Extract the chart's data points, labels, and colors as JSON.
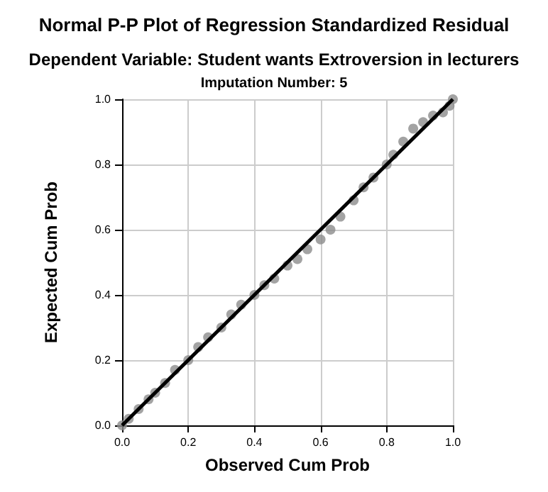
{
  "chart_data": {
    "type": "scatter",
    "title": "Normal P-P Plot of Regression Standardized Residual",
    "subtitle": "Dependent Variable: Student wants Extroversion in lecturers",
    "annotations": [
      "Imputation Number: 5"
    ],
    "xlabel": "Observed Cum Prob",
    "ylabel": "Expected Cum Prob",
    "x": [
      0,
      0.02,
      0.05,
      0.08,
      0.1,
      0.13,
      0.16,
      0.2,
      0.23,
      0.26,
      0.3,
      0.33,
      0.36,
      0.4,
      0.43,
      0.46,
      0.5,
      0.53,
      0.56,
      0.6,
      0.63,
      0.66,
      0.7,
      0.73,
      0.76,
      0.8,
      0.82,
      0.85,
      0.88,
      0.91,
      0.94,
      0.97,
      0.99,
      1
    ],
    "series": [
      {
        "color": "#8c8c8c",
        "marker": "circle",
        "values": [
          0,
          0.02,
          0.05,
          0.08,
          0.1,
          0.13,
          0.17,
          0.2,
          0.24,
          0.27,
          0.3,
          0.34,
          0.37,
          0.4,
          0.43,
          0.45,
          0.49,
          0.51,
          0.54,
          0.57,
          0.6,
          0.64,
          0.69,
          0.73,
          0.76,
          0.8,
          0.83,
          0.87,
          0.91,
          0.93,
          0.95,
          0.96,
          0.98,
          1
        ]
      },
      {
        "type": "line",
        "color": "#000000",
        "x": [
          0,
          1
        ],
        "values": [
          0,
          1
        ]
      }
    ],
    "xlim": [
      0,
      1
    ],
    "ylim": [
      0,
      1
    ],
    "xticks": [
      {
        "value": 0,
        "label": "0.0"
      },
      0.2,
      0.4,
      0.6,
      0.8,
      {
        "value": 1,
        "label": "1.0"
      }
    ],
    "yticks": [
      {
        "value": 0,
        "label": "0.0"
      },
      0.2,
      0.4,
      0.6,
      0.8,
      {
        "value": 1,
        "label": "1.0"
      }
    ],
    "grid": true
  }
}
